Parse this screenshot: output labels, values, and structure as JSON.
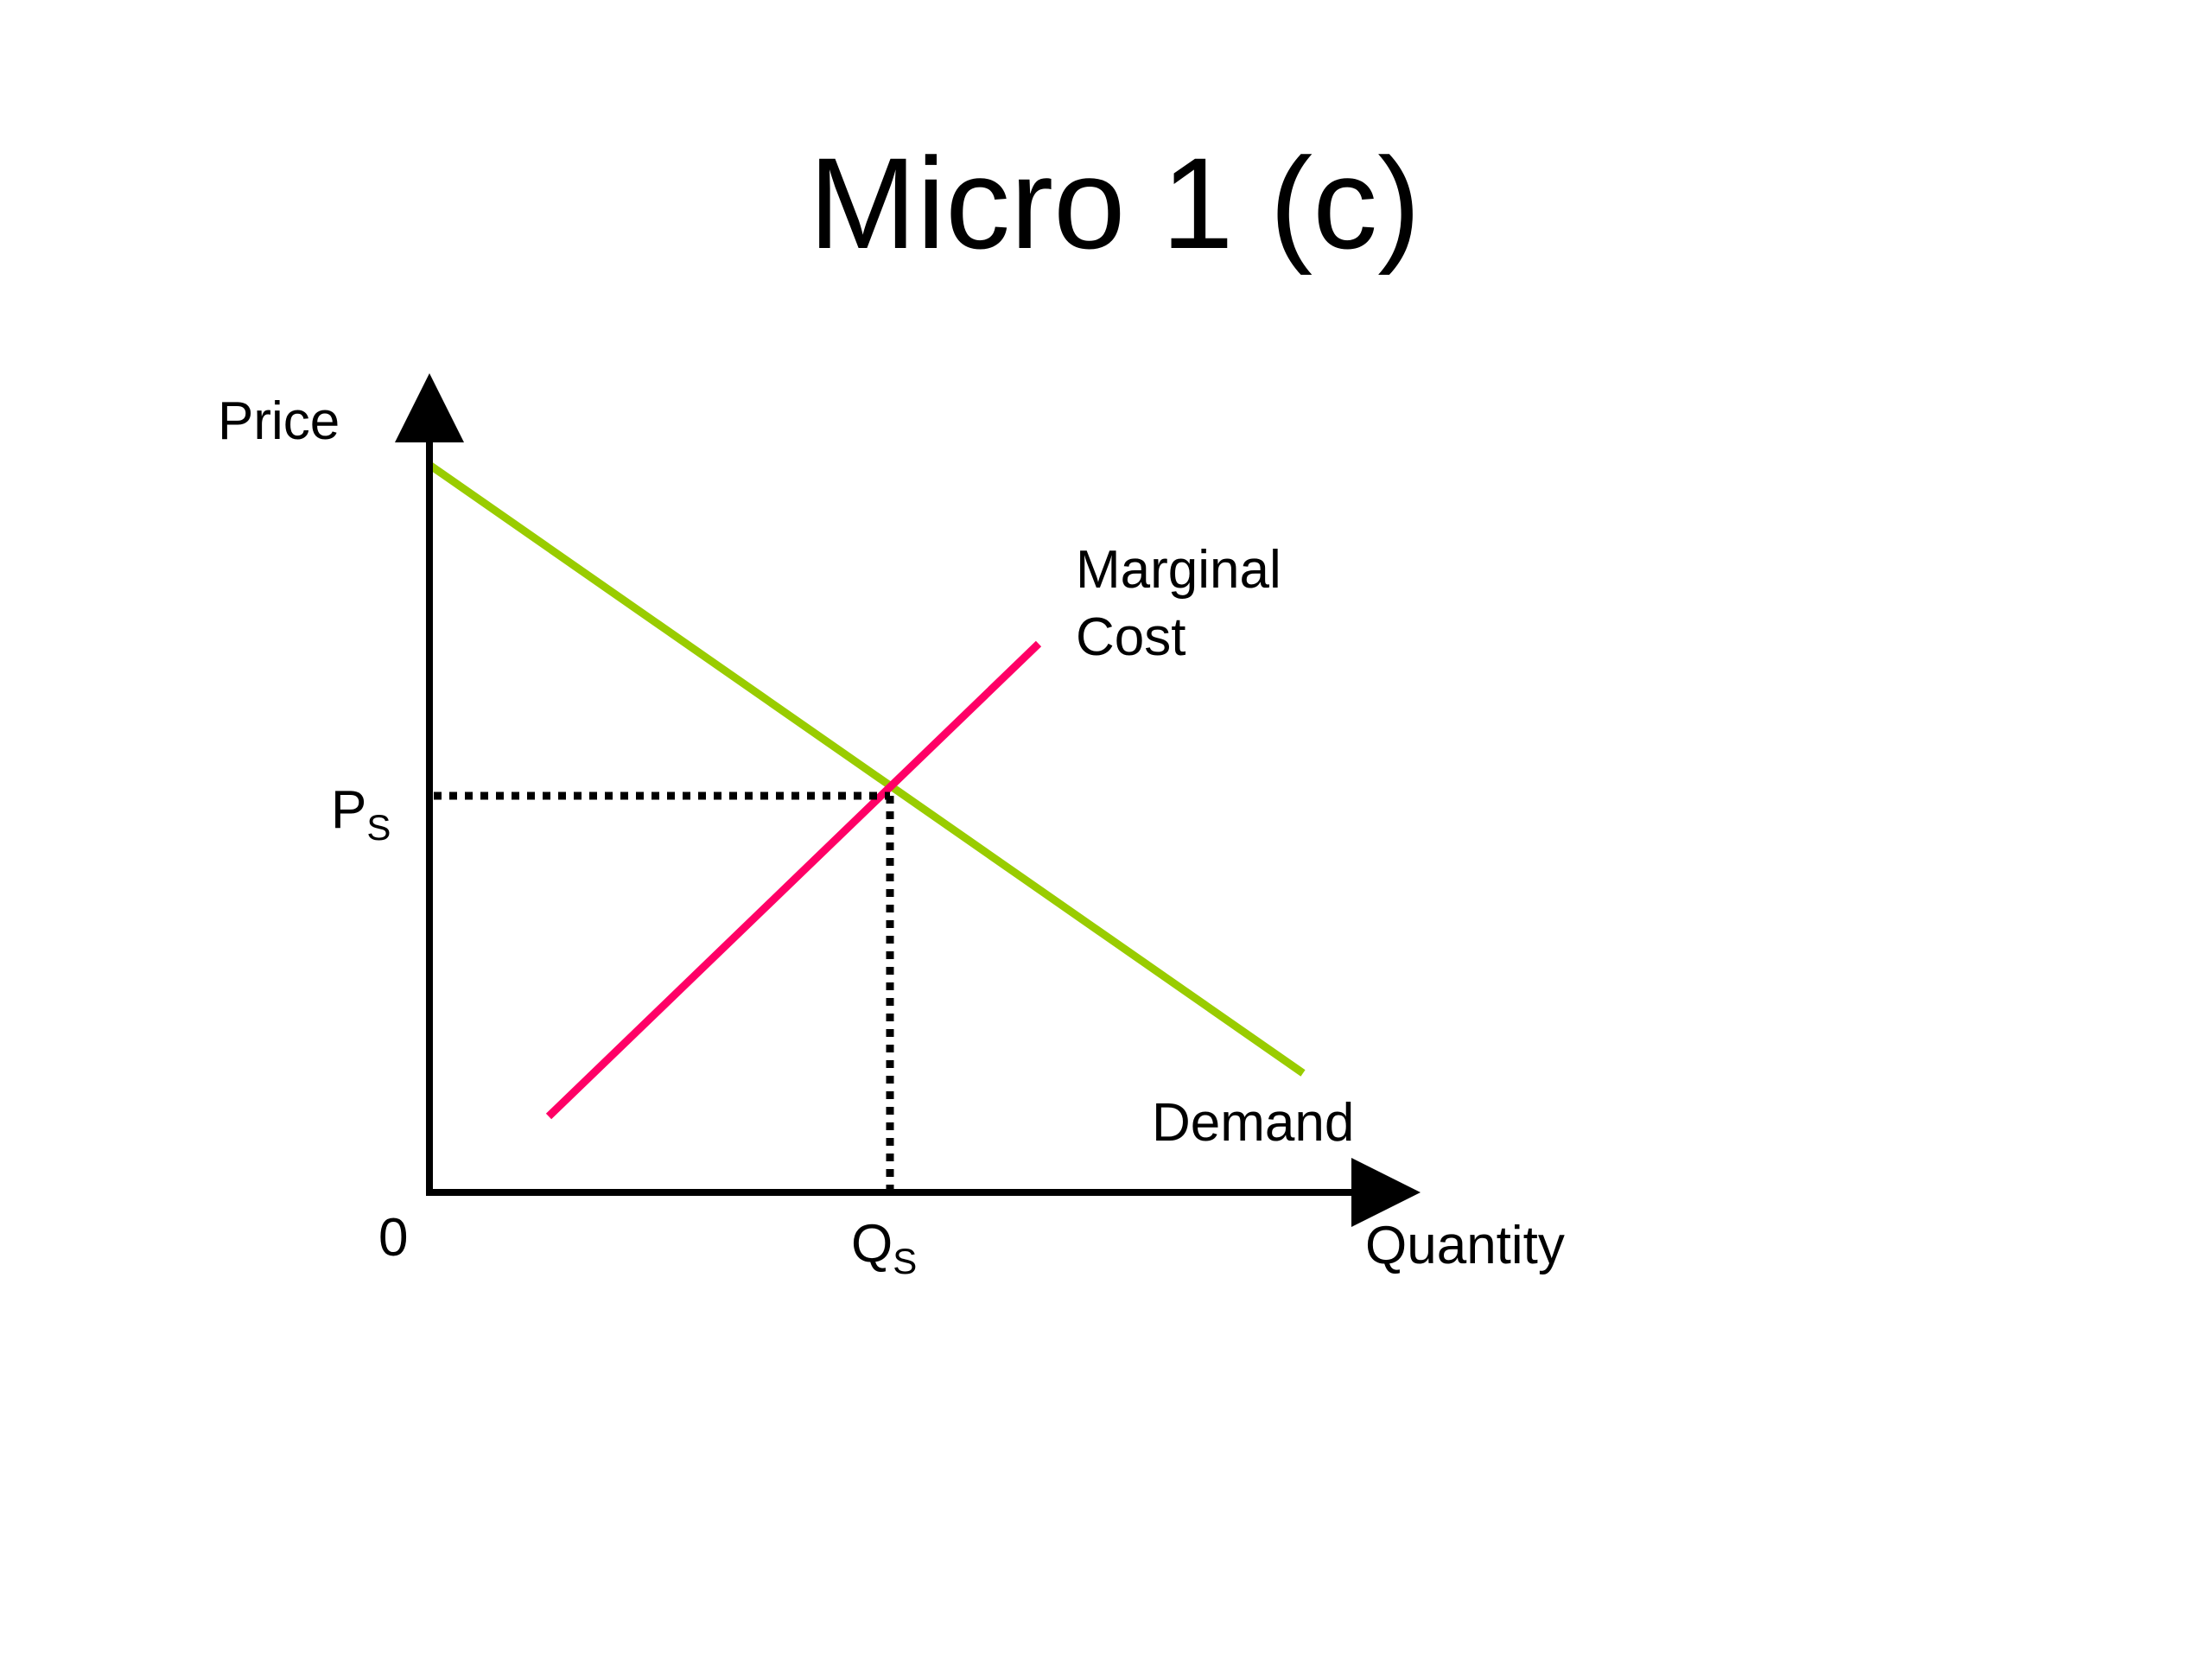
{
  "title": "Micro 1 (c)",
  "axes": {
    "y_label": "Price",
    "x_label": "Quantity",
    "origin_label": "0"
  },
  "equilibrium": {
    "price_label": "P",
    "price_subscript": "S",
    "quantity_label": "Q",
    "quantity_subscript": "S"
  },
  "curves": {
    "marginal_cost": {
      "label_line1": "Marginal",
      "label_line2": "Cost",
      "color": "#ff0066"
    },
    "demand": {
      "label": "Demand",
      "color": "#99cc00"
    }
  },
  "axis_color": "#000000",
  "guide_style": "dotted"
}
